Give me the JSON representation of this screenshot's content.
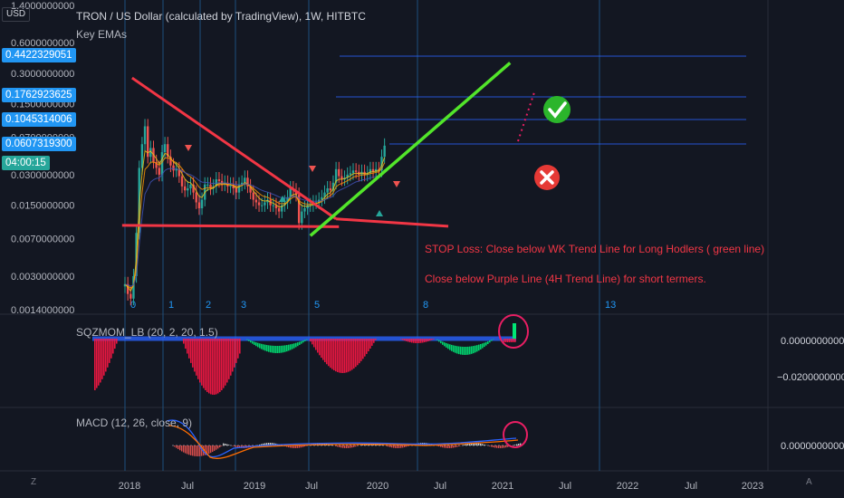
{
  "header": {
    "symbol_title": "TRON / US Dollar (calculated by TradingView), 1W, HITBTC",
    "indicator_label": "Key EMAs",
    "currency": "USD"
  },
  "price_axis_labels": [
    "1.4000000000",
    "0.6000000000",
    "0.3000000000",
    "0.1500000000",
    "0.0700000000",
    "0.0300000000",
    "0.0150000000",
    "0.0070000000",
    "0.0030000000",
    "0.0014000000"
  ],
  "price_badges": [
    {
      "value": "0.4422329051",
      "color": "#2196f3"
    },
    {
      "value": "0.1762923625",
      "color": "#2196f3"
    },
    {
      "value": "0.1045314006",
      "color": "#2196f3"
    },
    {
      "value": "0.0607319300",
      "color": "#2196f3"
    },
    {
      "value": "04:00:15",
      "color": "#26a69a"
    }
  ],
  "cycle_labels": [
    "0",
    "1",
    "2",
    "3",
    "5",
    "8",
    "13"
  ],
  "annotations": {
    "stop_loss": "STOP Loss: Close below WK Trend Line for Long Hodlers ( green line)",
    "short_term": "Close below Purple Line (4H Trend Line) for short termers."
  },
  "sqz_panel": {
    "title": "SQZMOM_LB (20, 2, 20, 1.5)",
    "axis": [
      "0.0000000000",
      "−0.0200000000"
    ]
  },
  "macd_panel": {
    "title": "MACD (12, 26, close, 9)",
    "axis": [
      "0.0000000000"
    ]
  },
  "time_axis": [
    "2018",
    "Jul",
    "2019",
    "Jul",
    "2020",
    "Jul",
    "2021",
    "Jul",
    "2022",
    "Jul",
    "2023"
  ],
  "corner_left": "Z",
  "corner_right": "A",
  "colors": {
    "background": "#131722",
    "red_line": "#f23645",
    "green_line": "#52e52a",
    "blue_line": "#2196f3",
    "fib_line": "#2962ff",
    "pink_dots": "#e91e63"
  },
  "chart_data": {
    "type": "line",
    "title": "TRON / US Dollar (calculated by TradingView), 1W, HITBTC",
    "ylabel": "USD",
    "yscale": "log",
    "ylim": [
      0.0014,
      1.4
    ],
    "y_ticks": [
      1.4,
      0.6,
      0.3,
      0.15,
      0.07,
      0.03,
      0.015,
      0.007,
      0.003,
      0.0014
    ],
    "x_ticks": [
      "2018",
      "Jul",
      "2019",
      "Jul",
      "2020",
      "Jul",
      "2021",
      "Jul",
      "2022",
      "Jul",
      "2023"
    ],
    "x": [
      0,
      2,
      4,
      6,
      8,
      10,
      12,
      14,
      16,
      18,
      20,
      22,
      24,
      26,
      28,
      30,
      32,
      34,
      36,
      38,
      40,
      42,
      44,
      46,
      48,
      50,
      52,
      54,
      56,
      58,
      60,
      62,
      64,
      66,
      68,
      70,
      72,
      74,
      76,
      78,
      80,
      82,
      84,
      86,
      88,
      90,
      92,
      94,
      96,
      98,
      100,
      102,
      104,
      106,
      108,
      110,
      112,
      114,
      116,
      118,
      120,
      122,
      124,
      126,
      128,
      130,
      132,
      134,
      136,
      138,
      140,
      142,
      144,
      146,
      148,
      150,
      152,
      154,
      156,
      158,
      160,
      162,
      164,
      166,
      168,
      170,
      172,
      174,
      176,
      178,
      180,
      182
    ],
    "series": [
      {
        "values": [
          0.0025,
          0.002,
          0.0018,
          0.003,
          0.008,
          0.035,
          0.06,
          0.09,
          0.045,
          0.055,
          0.04,
          0.035,
          0.03,
          0.05,
          0.06,
          0.045,
          0.037,
          0.033,
          0.034,
          0.029,
          0.023,
          0.021,
          0.022,
          0.024,
          0.02,
          0.016,
          0.014,
          0.017,
          0.024,
          0.024,
          0.022,
          0.023,
          0.027,
          0.026,
          0.024,
          0.025,
          0.023,
          0.024,
          0.022,
          0.02,
          0.024,
          0.025,
          0.028,
          0.023,
          0.02,
          0.017,
          0.016,
          0.015,
          0.015,
          0.016,
          0.017,
          0.015,
          0.015,
          0.014,
          0.013,
          0.015,
          0.016,
          0.018,
          0.022,
          0.021,
          0.019,
          0.01,
          0.013,
          0.014,
          0.015,
          0.015,
          0.016,
          0.016,
          0.017,
          0.018,
          0.02,
          0.022,
          0.021,
          0.025,
          0.034,
          0.029,
          0.027,
          0.028,
          0.03,
          0.031,
          0.033,
          0.032,
          0.03,
          0.032,
          0.03,
          0.031,
          0.034,
          0.032,
          0.034,
          0.033,
          0.045,
          0.058
        ]
      }
    ],
    "trend_lines": [
      {
        "from": [
          5,
          0.27
        ],
        "to": [
          148,
          0.011
        ]
      },
      {
        "from": [
          -2,
          0.0095
        ],
        "to": [
          150,
          0.0092
        ]
      },
      {
        "from": [
          130,
          0.0075
        ],
        "to": [
          270,
          0.38
        ]
      }
    ]
  }
}
